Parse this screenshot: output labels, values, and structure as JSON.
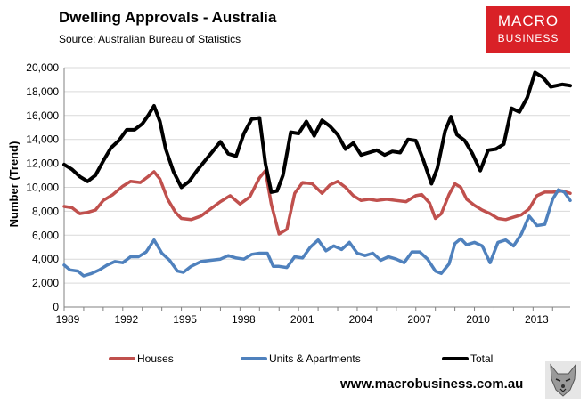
{
  "header": {
    "title": "Dwelling Approvals - Australia",
    "source": "Source:  Australian Bureau of Statistics"
  },
  "logo": {
    "line1": "MACRO",
    "line2": "BUSINESS",
    "color": "#d92127"
  },
  "footer": {
    "url": "www.macrobusiness.com.au"
  },
  "chart_data": {
    "type": "line",
    "title": "Dwelling Approvals - Australia",
    "xlabel": "",
    "ylabel": "Number (Trend)",
    "xlim": [
      1989,
      2014.9
    ],
    "ylim": [
      0,
      20000
    ],
    "y_ticks": [
      0,
      2000,
      4000,
      6000,
      8000,
      10000,
      12000,
      14000,
      16000,
      18000,
      20000
    ],
    "y_tick_labels": [
      "0",
      "2,000",
      "4,000",
      "6,000",
      "8,000",
      "10,000",
      "12,000",
      "14,000",
      "16,000",
      "18,000",
      "20,000"
    ],
    "x_ticks": [
      1989,
      1992,
      1995,
      1998,
      2001,
      2004,
      2007,
      2010,
      2013
    ],
    "x_tick_labels": [
      "1989",
      "1992",
      "1995",
      "1998",
      "2001",
      "2004",
      "2007",
      "2010",
      "2013"
    ],
    "grid": "horizontal",
    "legend": "bottom",
    "series": [
      {
        "name": "Houses",
        "color": "#c0504d",
        "x": [
          1989.0,
          1989.4,
          1989.8,
          1990.2,
          1990.6,
          1991.0,
          1991.5,
          1992.0,
          1992.4,
          1992.9,
          1993.3,
          1993.6,
          1993.9,
          1994.3,
          1994.7,
          1995.0,
          1995.5,
          1996.0,
          1996.5,
          1997.0,
          1997.5,
          1998.0,
          1998.5,
          1999.0,
          1999.3,
          1999.6,
          2000.0,
          2000.4,
          2000.8,
          2001.2,
          2001.7,
          2002.2,
          2002.6,
          2003.0,
          2003.4,
          2003.8,
          2004.2,
          2004.6,
          2005.0,
          2005.5,
          2006.0,
          2006.5,
          2007.0,
          2007.3,
          2007.7,
          2008.0,
          2008.3,
          2008.7,
          2009.0,
          2009.3,
          2009.6,
          2010.0,
          2010.4,
          2010.8,
          2011.2,
          2011.6,
          2012.0,
          2012.4,
          2012.8,
          2013.2,
          2013.6,
          2014.0,
          2014.5,
          2014.9
        ],
        "values": [
          8400,
          8300,
          7800,
          7900,
          8100,
          8900,
          9400,
          10100,
          10500,
          10400,
          10900,
          11300,
          10700,
          9000,
          7900,
          7400,
          7300,
          7600,
          8200,
          8800,
          9300,
          8600,
          9200,
          10800,
          11400,
          8600,
          6100,
          6500,
          9500,
          10400,
          10300,
          9500,
          10200,
          10500,
          10000,
          9300,
          8900,
          9000,
          8900,
          9000,
          8900,
          8800,
          9300,
          9400,
          8700,
          7400,
          7800,
          9400,
          10300,
          10000,
          9000,
          8500,
          8100,
          7800,
          7400,
          7300,
          7500,
          7700,
          8200,
          9300,
          9600,
          9600,
          9700,
          9500
        ]
      },
      {
        "name": "Units & Apartments",
        "color": "#4f81bd",
        "x": [
          1989.0,
          1989.3,
          1989.7,
          1990.0,
          1990.4,
          1990.8,
          1991.2,
          1991.6,
          1992.0,
          1992.4,
          1992.8,
          1993.2,
          1993.6,
          1994.0,
          1994.4,
          1994.8,
          1995.1,
          1995.5,
          1996.0,
          1996.5,
          1997.0,
          1997.4,
          1997.8,
          1998.2,
          1998.6,
          1999.0,
          1999.4,
          1999.7,
          2000.0,
          2000.4,
          2000.8,
          2001.2,
          2001.6,
          2002.0,
          2002.4,
          2002.8,
          2003.2,
          2003.6,
          2004.0,
          2004.4,
          2004.8,
          2005.2,
          2005.6,
          2006.0,
          2006.4,
          2006.8,
          2007.2,
          2007.6,
          2008.0,
          2008.3,
          2008.7,
          2009.0,
          2009.3,
          2009.6,
          2010.0,
          2010.4,
          2010.8,
          2011.2,
          2011.6,
          2012.0,
          2012.4,
          2012.8,
          2013.2,
          2013.6,
          2014.0,
          2014.3,
          2014.6,
          2014.9
        ],
        "values": [
          3500,
          3100,
          3000,
          2600,
          2800,
          3100,
          3500,
          3800,
          3700,
          4200,
          4200,
          4600,
          5600,
          4500,
          3900,
          3000,
          2900,
          3400,
          3800,
          3900,
          4000,
          4300,
          4100,
          4000,
          4400,
          4500,
          4500,
          3400,
          3400,
          3300,
          4200,
          4100,
          5000,
          5600,
          4700,
          5100,
          4800,
          5400,
          4500,
          4300,
          4500,
          3900,
          4200,
          4000,
          3700,
          4600,
          4600,
          4000,
          3000,
          2800,
          3600,
          5300,
          5700,
          5200,
          5400,
          5100,
          3700,
          5400,
          5600,
          5100,
          6100,
          7600,
          6800,
          6900,
          9000,
          9800,
          9600,
          8900
        ]
      },
      {
        "name": "Total",
        "color": "#000000",
        "x": [
          1989.0,
          1989.4,
          1989.8,
          1990.2,
          1990.6,
          1991.0,
          1991.4,
          1991.8,
          1992.2,
          1992.6,
          1993.0,
          1993.3,
          1993.6,
          1993.9,
          1994.2,
          1994.6,
          1995.0,
          1995.4,
          1995.8,
          1996.2,
          1996.6,
          1997.0,
          1997.4,
          1997.8,
          1998.2,
          1998.6,
          1999.0,
          1999.3,
          1999.6,
          1999.9,
          2000.2,
          2000.6,
          2001.0,
          2001.4,
          2001.8,
          2002.2,
          2002.6,
          2003.0,
          2003.4,
          2003.8,
          2004.2,
          2004.6,
          2005.0,
          2005.4,
          2005.8,
          2006.2,
          2006.6,
          2007.0,
          2007.4,
          2007.8,
          2008.1,
          2008.5,
          2008.8,
          2009.1,
          2009.5,
          2009.9,
          2010.3,
          2010.7,
          2011.1,
          2011.5,
          2011.9,
          2012.3,
          2012.7,
          2013.1,
          2013.5,
          2013.9,
          2014.2,
          2014.5,
          2014.9
        ],
        "values": [
          11900,
          11500,
          10900,
          10500,
          11000,
          12200,
          13300,
          13900,
          14800,
          14800,
          15300,
          16000,
          16800,
          15500,
          13200,
          11300,
          10000,
          10500,
          11400,
          12200,
          13000,
          13800,
          12800,
          12600,
          14500,
          15700,
          15800,
          12000,
          9600,
          9700,
          11000,
          14600,
          14500,
          15500,
          14300,
          15600,
          15100,
          14400,
          13200,
          13700,
          12700,
          12900,
          13100,
          12700,
          13000,
          12900,
          14000,
          13900,
          12200,
          10300,
          11600,
          14700,
          15900,
          14400,
          13900,
          12800,
          11400,
          13100,
          13200,
          13600,
          16600,
          16300,
          17500,
          19600,
          19200,
          18400,
          18500,
          18600,
          18500
        ]
      }
    ]
  }
}
